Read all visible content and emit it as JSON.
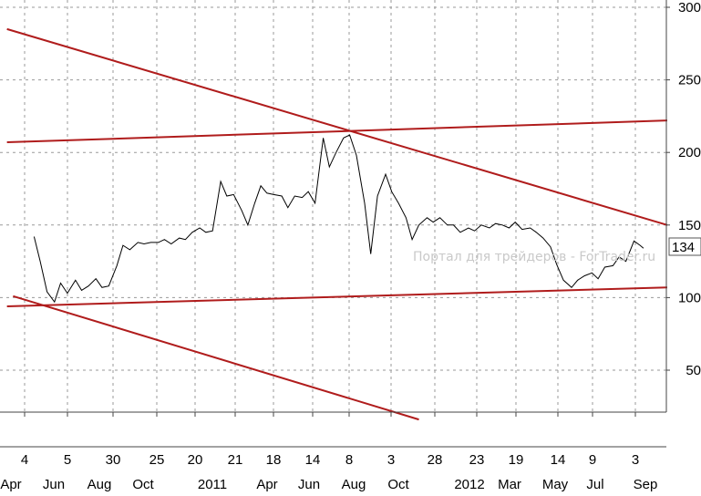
{
  "chart_data": {
    "type": "line",
    "title": "",
    "xlabel": "",
    "ylabel": "",
    "ylim": [
      0,
      300
    ],
    "y_ticks": [
      50,
      100,
      150,
      200,
      250,
      300
    ],
    "last_value": "134",
    "grid": true,
    "x_ticks_top": [
      "4",
      "5",
      "30",
      "25",
      "20",
      "21",
      "18",
      "14",
      "8",
      "3",
      "28",
      "23",
      "19",
      "14",
      "9",
      "3"
    ],
    "x_ticks_bottom": [
      "Apr",
      "Jun",
      "Aug",
      "Oct",
      "2011",
      "Apr",
      "Jun",
      "Aug",
      "Oct",
      "2012",
      "Mar",
      "May",
      "Jul",
      "Sep"
    ],
    "watermark": "Портал для трейдеров - ForTrader.ru",
    "colors": {
      "price": "#000000",
      "trendline": "#b01c1c",
      "grid": "#9a9a9a"
    },
    "series": [
      {
        "x": [
          "2010-04-01",
          "2010-04-10",
          "2010-04-20",
          "2010-05-01",
          "2010-05-10",
          "2010-05-20",
          "2010-06-01",
          "2010-06-10",
          "2010-06-20",
          "2010-07-01",
          "2010-07-10",
          "2010-07-20",
          "2010-08-01",
          "2010-08-10",
          "2010-08-20",
          "2010-09-01",
          "2010-09-10",
          "2010-09-20",
          "2010-10-01",
          "2010-10-10",
          "2010-10-20",
          "2010-11-01",
          "2010-11-10",
          "2010-11-20",
          "2010-12-01",
          "2010-12-10",
          "2010-12-20",
          "2011-01-01",
          "2011-01-10",
          "2011-01-20",
          "2011-02-01",
          "2011-02-10",
          "2011-02-20",
          "2011-03-01",
          "2011-03-10",
          "2011-03-20",
          "2011-04-01",
          "2011-04-10",
          "2011-04-20",
          "2011-05-01",
          "2011-05-10",
          "2011-05-20",
          "2011-06-01",
          "2011-06-10",
          "2011-06-20",
          "2011-07-01",
          "2011-07-10",
          "2011-07-20",
          "2011-08-01",
          "2011-08-10",
          "2011-08-20",
          "2011-09-01",
          "2011-09-10",
          "2011-09-20",
          "2011-10-01",
          "2011-10-10",
          "2011-10-20",
          "2011-11-01",
          "2011-11-10",
          "2011-11-20",
          "2011-12-01",
          "2011-12-10",
          "2011-12-20",
          "2012-01-01",
          "2012-01-10",
          "2012-01-20",
          "2012-02-01",
          "2012-02-10",
          "2012-02-20",
          "2012-03-01",
          "2012-03-10",
          "2012-03-20",
          "2012-04-01",
          "2012-04-10",
          "2012-04-20",
          "2012-05-01",
          "2012-05-10",
          "2012-05-20",
          "2012-06-01",
          "2012-06-10",
          "2012-06-20",
          "2012-07-01",
          "2012-07-10",
          "2012-07-20",
          "2012-08-01",
          "2012-08-10",
          "2012-08-20",
          "2012-09-01",
          "2012-09-10",
          "2012-09-15"
        ],
        "values": [
          142,
          125,
          104,
          97,
          110,
          103,
          112,
          105,
          108,
          113,
          107,
          108,
          122,
          136,
          133,
          138,
          137,
          138,
          138,
          140,
          137,
          141,
          140,
          145,
          148,
          145,
          146,
          180,
          170,
          171,
          160,
          150,
          165,
          177,
          172,
          171,
          170,
          162,
          170,
          169,
          173,
          165,
          210,
          190,
          200,
          210,
          212,
          198,
          165,
          130,
          170,
          185,
          173,
          165,
          155,
          140,
          150,
          155,
          152,
          155,
          150,
          150,
          145,
          148,
          146,
          150,
          148,
          151,
          150,
          148,
          152,
          147,
          148,
          145,
          141,
          135,
          123,
          112,
          107,
          112,
          115,
          117,
          113,
          121,
          122,
          128,
          125,
          139,
          136,
          134
        ]
      }
    ],
    "trendlines": [
      {
        "from": [
          "2010-02-20",
          285
        ],
        "to": [
          "2012-10-20",
          150
        ]
      },
      {
        "from": [
          "2010-02-20",
          207
        ],
        "to": [
          "2012-10-20",
          222
        ]
      },
      {
        "from": [
          "2010-02-20",
          94
        ],
        "to": [
          "2012-10-20",
          107
        ]
      },
      {
        "from": [
          "2010-03-01",
          101
        ],
        "to": [
          "2011-10-20",
          16
        ]
      }
    ]
  }
}
